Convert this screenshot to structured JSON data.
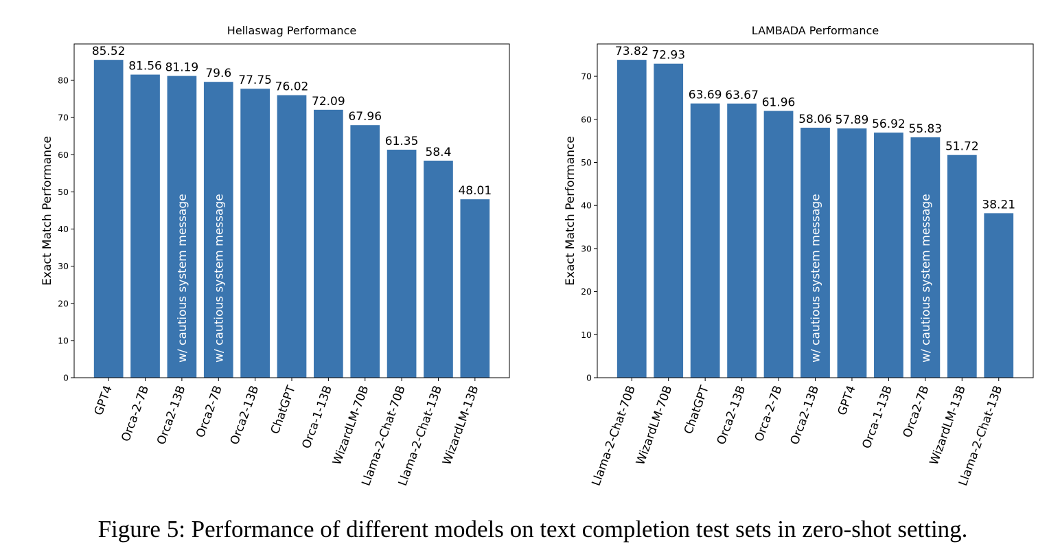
{
  "chart_data": [
    {
      "type": "bar",
      "title": "Hellaswag Performance",
      "ylabel": "Exact Match Performance",
      "categories": [
        "GPT4",
        "Orca-2-7B",
        "Orca2-13B",
        "Orca2-7B",
        "Orca2-13B",
        "ChatGPT",
        "Orca-1-13B",
        "WizardLM-70B",
        "Llama-2-Chat-70B",
        "Llama-2-Chat-13B",
        "WizardLM-13B"
      ],
      "values": [
        85.52,
        81.56,
        81.19,
        79.6,
        77.75,
        76.02,
        72.09,
        67.96,
        61.35,
        58.4,
        48.01
      ],
      "annotations": [
        null,
        null,
        "w/ cautious system message",
        "w/ cautious system message",
        null,
        null,
        null,
        null,
        null,
        null,
        null
      ],
      "color": "#3a75af",
      "ylim": [
        0,
        89.8
      ],
      "yticks": [
        0,
        10,
        20,
        30,
        40,
        50,
        60,
        70,
        80
      ]
    },
    {
      "type": "bar",
      "title": "LAMBADA Performance",
      "ylabel": "Exact Match Performance",
      "categories": [
        "Llama-2-Chat-70B",
        "WizardLM-70B",
        "ChatGPT",
        "Orca2-13B",
        "Orca-2-7B",
        "Orca2-13B",
        "GPT4",
        "Orca-1-13B",
        "Orca2-7B",
        "WizardLM-13B",
        "Llama-2-Chat-13B"
      ],
      "values": [
        73.82,
        72.93,
        63.69,
        63.67,
        61.96,
        58.06,
        57.89,
        56.92,
        55.83,
        51.72,
        38.21
      ],
      "annotations": [
        null,
        null,
        null,
        null,
        null,
        "w/ cautious system message",
        null,
        null,
        "w/ cautious system message",
        null,
        null
      ],
      "color": "#3a75af",
      "ylim": [
        0,
        77.51
      ],
      "yticks": [
        0,
        10,
        20,
        30,
        40,
        50,
        60,
        70
      ]
    }
  ],
  "caption": "Figure 5: Performance of different models on text completion test sets in zero-shot setting."
}
